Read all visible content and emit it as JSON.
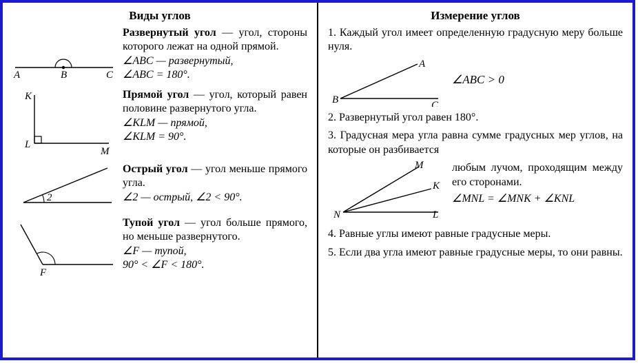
{
  "colors": {
    "border": "#1b1bd6",
    "ink": "#000000",
    "bg": "#ffffff"
  },
  "left": {
    "heading": "Виды углов",
    "straight": {
      "def_html": "<b>Развернутый угол</b> — угол, стороны которого лежат на одной прямой.",
      "line1": "∠ABC — развернутый,",
      "line2": "∠ABC = 180°.",
      "labels": {
        "A": "A",
        "B": "B",
        "C": "C"
      }
    },
    "right": {
      "def_html": "<b>Прямой угол</b> — угол, который равен половине развернутого угла.",
      "line1": "∠KLM — прямой,",
      "line2": "∠KLM = 90°.",
      "labels": {
        "K": "K",
        "L": "L",
        "M": "M"
      }
    },
    "acute": {
      "def_html": "<b>Острый угол</b> — угол меньше прямого угла.",
      "line1": "∠2 — острый, ∠2 < 90°.",
      "label2": "2"
    },
    "obtuse": {
      "def_html": "<b>Тупой угол</b> — угол больше прямого, но меньше развернутого.",
      "line1": "∠F — тупой,",
      "line2": "90° < ∠F < 180°.",
      "labelF": "F"
    }
  },
  "right": {
    "heading": "Измерение углов",
    "p1": "1. Каждый угол имеет определенную градусную меру больше нуля.",
    "p1_diagram_labels": {
      "A": "A",
      "B": "B",
      "C": "C"
    },
    "p1_formula": "∠ABC > 0",
    "p2": "2. Развернутый угол равен 180°.",
    "p3a": "3. Градусная мера угла равна сумме градусных мер углов, на которые он разбивается",
    "p3b": "любым лучом, проходящим между его сторонами.",
    "p3_formula": "∠MNL = ∠MNK + ∠KNL",
    "p3_labels": {
      "M": "M",
      "N": "N",
      "K": "K",
      "L": "L"
    },
    "p4": "4. Равные углы имеют равные градусные меры.",
    "p5": "5. Если два угла имеют равные градусные меры, то они равны."
  }
}
